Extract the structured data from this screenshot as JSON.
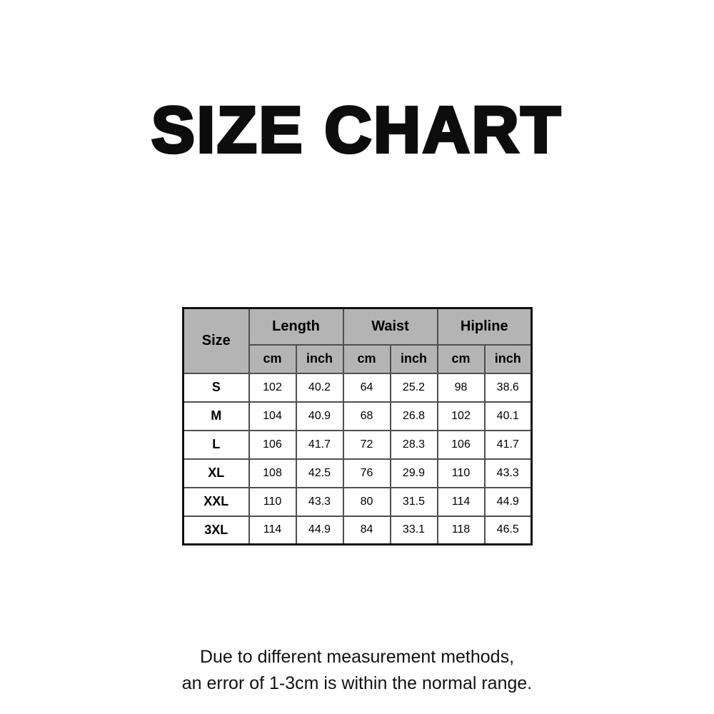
{
  "title": "SIZE CHART",
  "table": {
    "size_header": "Size",
    "groups": [
      {
        "label": "Length"
      },
      {
        "label": "Waist"
      },
      {
        "label": "Hipline"
      }
    ],
    "units": {
      "cm": "cm",
      "inch": "inch"
    },
    "rows": [
      {
        "size": "S",
        "values": [
          "102",
          "40.2",
          "64",
          "25.2",
          "98",
          "38.6"
        ]
      },
      {
        "size": "M",
        "values": [
          "104",
          "40.9",
          "68",
          "26.8",
          "102",
          "40.1"
        ]
      },
      {
        "size": "L",
        "values": [
          "106",
          "41.7",
          "72",
          "28.3",
          "106",
          "41.7"
        ]
      },
      {
        "size": "XL",
        "values": [
          "108",
          "42.5",
          "76",
          "29.9",
          "110",
          "43.3"
        ]
      },
      {
        "size": "XXL",
        "values": [
          "110",
          "43.3",
          "80",
          "31.5",
          "114",
          "44.9"
        ]
      },
      {
        "size": "3XL",
        "values": [
          "114",
          "44.9",
          "84",
          "33.1",
          "118",
          "46.5"
        ]
      }
    ]
  },
  "footer": {
    "line1": "Due to different measurement methods,",
    "line2": "an error of 1-3cm is within the normal range."
  },
  "colors": {
    "header_bg": "#b4b4b4",
    "inner_border": "#4f4f4f",
    "outer_border": "#121212",
    "text": "#000000",
    "background": "#ffffff"
  },
  "chart_data": {
    "type": "table",
    "title": "SIZE CHART",
    "columns": [
      "Size",
      "Length (cm)",
      "Length (inch)",
      "Waist (cm)",
      "Waist (inch)",
      "Hipline (cm)",
      "Hipline (inch)"
    ],
    "rows": [
      [
        "S",
        102,
        40.2,
        64,
        25.2,
        98,
        38.6
      ],
      [
        "M",
        104,
        40.9,
        68,
        26.8,
        102,
        40.1
      ],
      [
        "L",
        106,
        41.7,
        72,
        28.3,
        106,
        41.7
      ],
      [
        "XL",
        108,
        42.5,
        76,
        29.9,
        110,
        43.3
      ],
      [
        "XXL",
        110,
        43.3,
        80,
        31.5,
        114,
        44.9
      ],
      [
        "3XL",
        114,
        44.9,
        84,
        33.1,
        118,
        46.5
      ]
    ],
    "note": "Due to different measurement methods, an error of 1-3cm is within the normal range.",
    "layout": {
      "header_levels": 2,
      "header_background": "#b4b4b4",
      "grid": true
    }
  }
}
